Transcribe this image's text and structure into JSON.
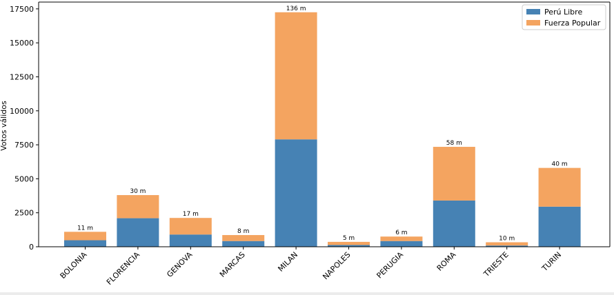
{
  "chart_data": {
    "type": "bar",
    "stacked": true,
    "ylabel": "Votos válidos",
    "xlabel": "",
    "categories": [
      "BOLONIA",
      "FLORENCIA",
      "GENOVA",
      "MARCAS",
      "MILAN",
      "NAPOLES",
      "PERUGIA",
      "ROMA",
      "TRIESTE",
      "TURIN"
    ],
    "series": [
      {
        "name": "Perú Libre",
        "color": "#4682b4",
        "values": [
          480,
          2100,
          900,
          420,
          7900,
          130,
          420,
          3400,
          90,
          2950
        ]
      },
      {
        "name": "Fuerza Popular",
        "color": "#f4a460",
        "values": [
          620,
          1700,
          1220,
          440,
          9350,
          230,
          330,
          3950,
          240,
          2850
        ]
      }
    ],
    "bar_labels": [
      "11 m",
      "30 m",
      "17 m",
      "8 m",
      "136 m",
      "5 m",
      "6 m",
      "58 m",
      "10 m",
      "40 m"
    ],
    "ylim": [
      0,
      18000
    ],
    "yticks": [
      0,
      2500,
      5000,
      7500,
      10000,
      12500,
      15000,
      17500
    ],
    "grid": false,
    "legend_position": "top-right"
  }
}
